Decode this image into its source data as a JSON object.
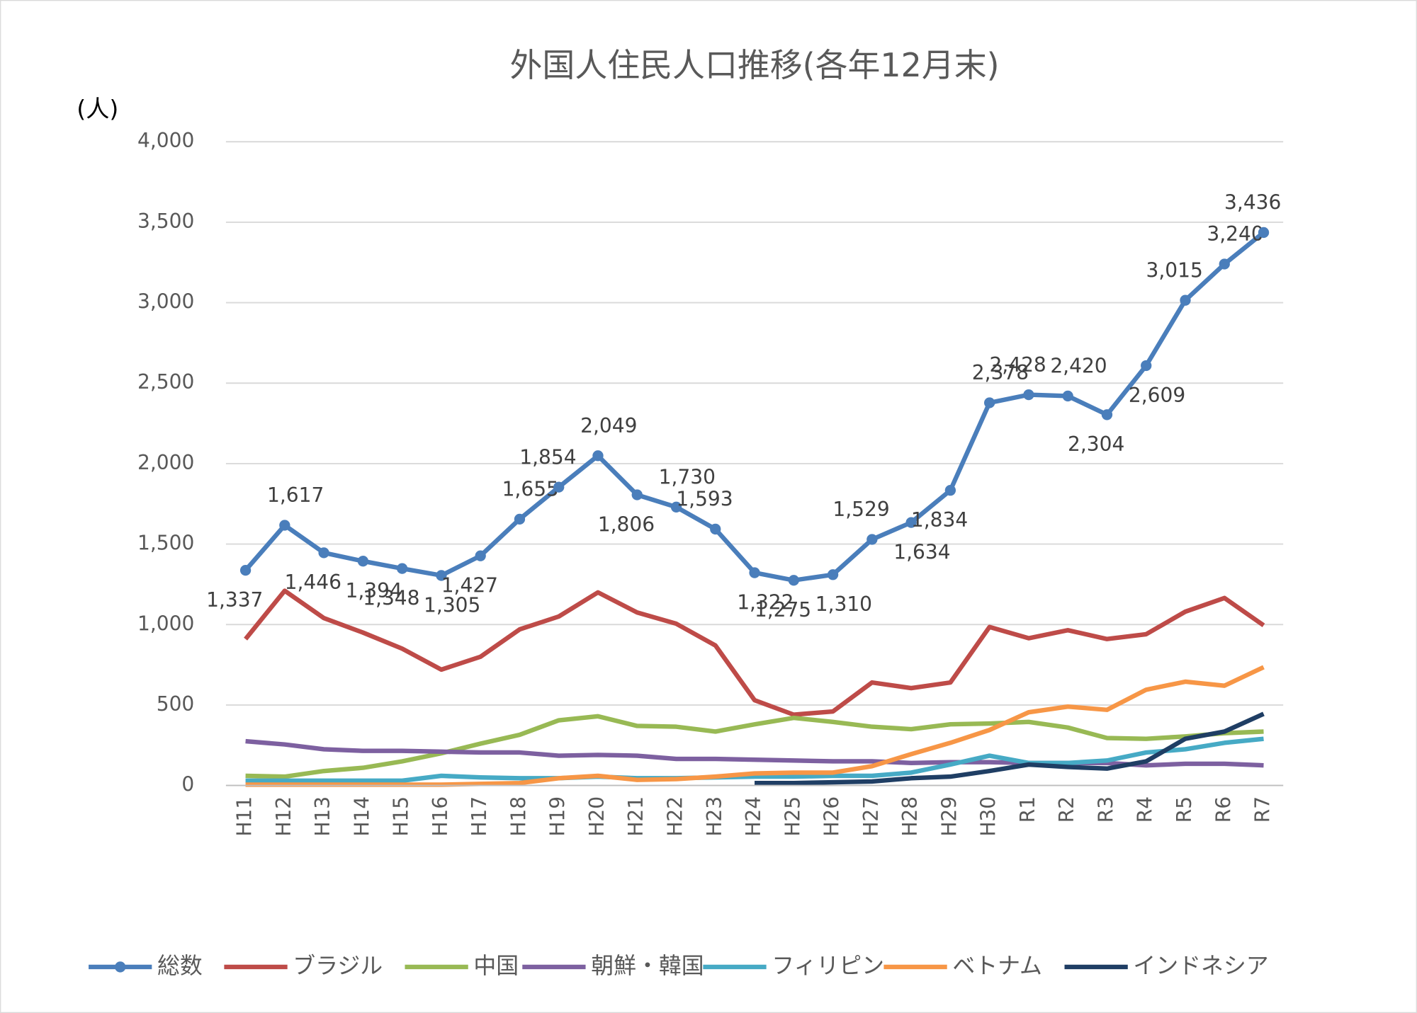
{
  "chart_data": {
    "type": "line",
    "title": "外国人住民人口推移(各年12月末)",
    "y_label": "(人)",
    "categories": [
      "H11",
      "H12",
      "H13",
      "H14",
      "H15",
      "H16",
      "H17",
      "H18",
      "H19",
      "H20",
      "H21",
      "H22",
      "H23",
      "H24",
      "H25",
      "H26",
      "H27",
      "H28",
      "H29",
      "H30",
      "R1",
      "R2",
      "R3",
      "R4",
      "R5",
      "R6",
      "R7"
    ],
    "ylim": [
      0,
      4000
    ],
    "yticks": [
      0,
      500,
      {
        "value": 1000,
        "label": "1,000"
      },
      {
        "value": 1500,
        "label": "1,500"
      },
      {
        "value": 2000,
        "label": "2,000"
      },
      {
        "value": 2500,
        "label": "2,500"
      },
      {
        "value": 3000,
        "label": "3,000"
      },
      {
        "value": 3500,
        "label": "3,500"
      },
      {
        "value": 4000,
        "label": "4,000"
      }
    ],
    "grid": true,
    "legend": "bottom",
    "series": [
      {
        "name": "総数",
        "color": "#4a7ebb",
        "markers": true,
        "values": [
          1337,
          1617,
          1446,
          1394,
          1348,
          1305,
          1427,
          1655,
          1854,
          2049,
          1806,
          1730,
          1593,
          1322,
          1275,
          1310,
          1529,
          1634,
          1834,
          2378,
          2428,
          2420,
          2304,
          2609,
          3015,
          3240,
          3436
        ],
        "value_labels": [
          "1,337",
          "1,617",
          "1,446",
          "1,394",
          "1,348",
          "1,305",
          "1,427",
          "1,655",
          "1,854",
          "2,049",
          "1,806",
          "1,730",
          "1,593",
          "1,322",
          "1,275",
          "1,310",
          "1,529",
          "1,634",
          "1,834",
          "2,378",
          "2,428",
          "2,420",
          "2,304",
          "2,609",
          "3,015",
          "3,240",
          "3,436"
        ]
      },
      {
        "name": "ブラジル",
        "color": "#be4b48",
        "values": [
          910,
          1210,
          1040,
          950,
          850,
          720,
          800,
          970,
          1050,
          1200,
          1075,
          1005,
          870,
          530,
          440,
          460,
          640,
          605,
          640,
          985,
          915,
          965,
          910,
          940,
          1080,
          1165,
          995
        ]
      },
      {
        "name": "中国",
        "color": "#98b954",
        "values": [
          60,
          55,
          90,
          110,
          150,
          200,
          260,
          315,
          405,
          430,
          370,
          365,
          335,
          380,
          420,
          395,
          365,
          350,
          380,
          385,
          395,
          360,
          295,
          290,
          305,
          325,
          335
        ]
      },
      {
        "name": "朝鮮・韓国",
        "color": "#7d60a0",
        "values": [
          275,
          255,
          225,
          215,
          215,
          210,
          205,
          205,
          185,
          190,
          185,
          165,
          165,
          160,
          155,
          150,
          150,
          140,
          145,
          145,
          140,
          140,
          140,
          125,
          135,
          135,
          125
        ]
      },
      {
        "name": "フィリピン",
        "color": "#46aac5",
        "values": [
          30,
          30,
          30,
          30,
          30,
          60,
          50,
          45,
          45,
          55,
          45,
          45,
          50,
          55,
          55,
          60,
          60,
          80,
          130,
          185,
          140,
          140,
          155,
          205,
          225,
          265,
          290
        ]
      },
      {
        "name": "ベトナム",
        "color": "#f79646",
        "values": [
          5,
          5,
          5,
          5,
          5,
          5,
          10,
          15,
          45,
          60,
          35,
          40,
          55,
          75,
          80,
          80,
          120,
          195,
          265,
          345,
          455,
          490,
          470,
          595,
          645,
          620,
          735
        ]
      },
      {
        "name": "インドネシア",
        "color": "#1f3e64",
        "values": [
          null,
          null,
          null,
          null,
          null,
          null,
          null,
          null,
          null,
          null,
          null,
          null,
          null,
          15,
          15,
          20,
          25,
          45,
          55,
          90,
          130,
          115,
          105,
          150,
          290,
          335,
          445
        ]
      }
    ]
  }
}
